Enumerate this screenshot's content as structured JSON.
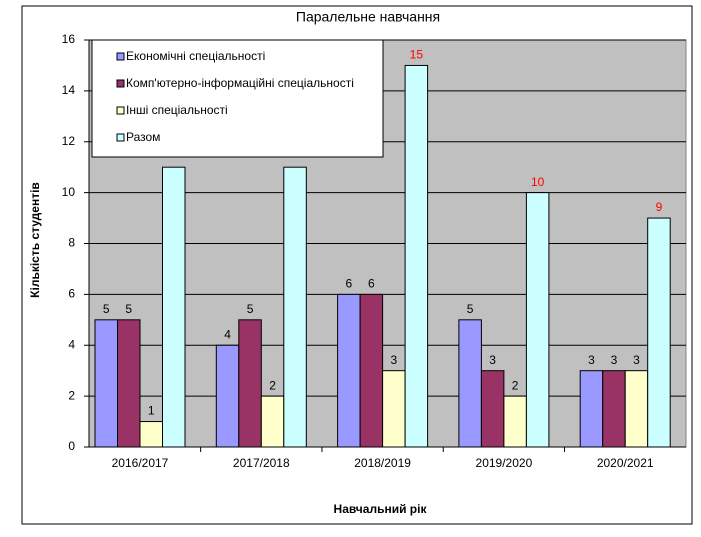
{
  "chart_data": {
    "type": "bar",
    "title": "Паралельне навчання",
    "xlabel": "Навчальний рік",
    "ylabel": "Кількість студентів",
    "categories": [
      "2016/2017",
      "2017/2018",
      "2018/2019",
      "2019/2020",
      "2020/2021"
    ],
    "series": [
      {
        "name": "Економічні спеціальності",
        "color": "#9999ff",
        "values": [
          5,
          4,
          6,
          5,
          3
        ]
      },
      {
        "name": "Комп'ютерно-інформаційні спеціальності",
        "color": "#993366",
        "values": [
          5,
          5,
          6,
          3,
          3
        ]
      },
      {
        "name": "Інші спеціальності",
        "color": "#ffffcc",
        "values": [
          1,
          2,
          3,
          2,
          3
        ]
      },
      {
        "name": "Разом",
        "color": "#ccffff",
        "values": [
          11,
          11,
          15,
          10,
          9
        ],
        "value_labels": [
          null,
          null,
          "15",
          "10",
          "9"
        ],
        "label_color": "#ff0000"
      }
    ],
    "ylim": [
      0,
      16
    ],
    "yticks": [
      0,
      2,
      4,
      6,
      8,
      10,
      12,
      14,
      16
    ],
    "grid": true,
    "plot_background": "#c0c0c0",
    "legend": "upper left"
  }
}
